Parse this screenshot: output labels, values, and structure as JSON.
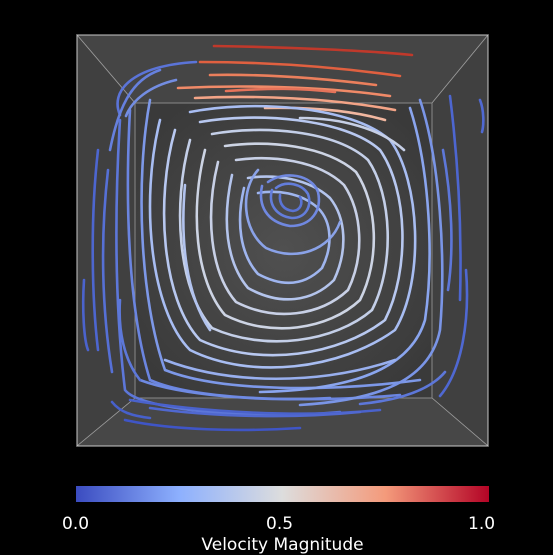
{
  "scene": {
    "background": "#000000",
    "box_front_fill": "#4a4a4a",
    "box_back_fill": "#3c3c3c",
    "box_edge": "#bdbdbd",
    "render_type": "streamlines in lid-driven cavity"
  },
  "colorbar": {
    "title": "Velocity Magnitude",
    "min_label": "0.0",
    "mid_label": "0.5",
    "max_label": "1.0",
    "colors": [
      "#3b4cc0",
      "#8db0fe",
      "#dddddd",
      "#f49a7b",
      "#b40426"
    ]
  }
}
